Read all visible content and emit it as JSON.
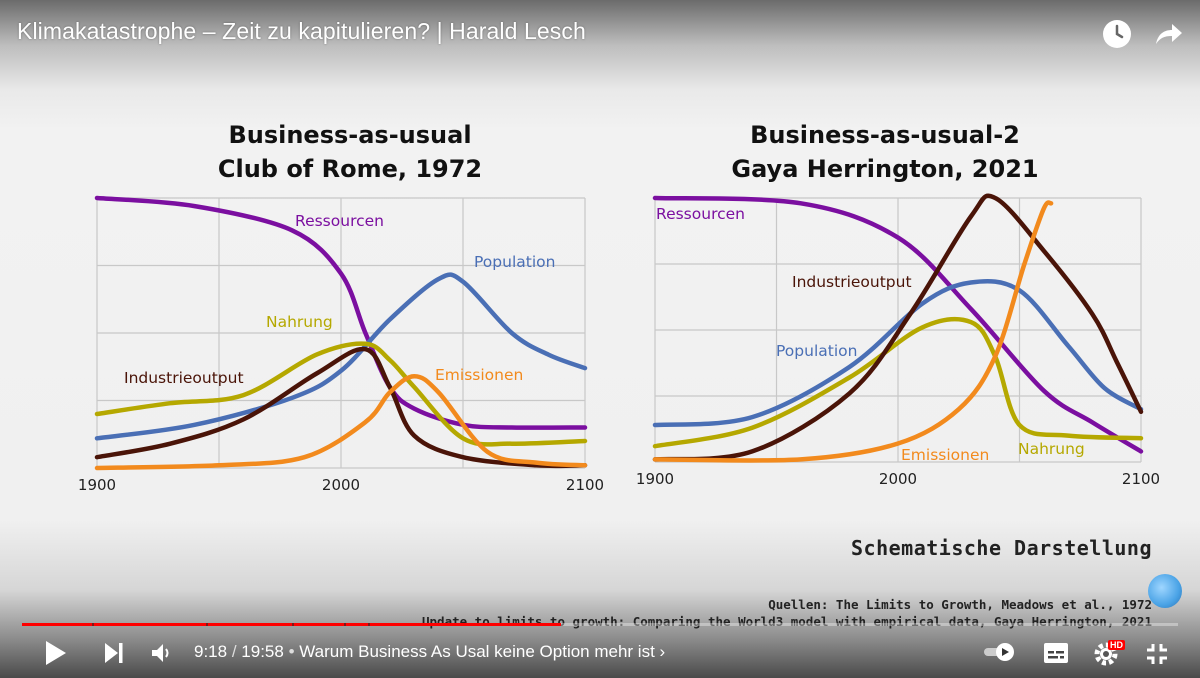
{
  "video": {
    "title": "Klimakatastrophe – Zeit zu kapitulieren? | Harald Lesch"
  },
  "slide": {
    "left_title_line1": "Business-as-usual",
    "left_title_line2": "Club of Rome, 1972",
    "right_title_line1": "Business-as-usual-2",
    "right_title_line2": "Gaya Herrington, 2021",
    "caption": "Schematische Darstellung",
    "source_line1": "Quellen: The Limits to Growth, Meadows et al., 1972",
    "source_line2": "Update to limits to growth: Comparing the World3 model with empirical data, Gaya Herrington, 2021"
  },
  "colors": {
    "ressourcen": "#7b0fa0",
    "population": "#4a6fb5",
    "nahrung": "#b5a800",
    "industrieoutput": "#4a1408",
    "emissionen": "#f28a1d"
  },
  "chart_data": [
    {
      "type": "line",
      "title": "Business-as-usual Club of Rome, 1972",
      "x_ticks": [
        "1900",
        "2000",
        "2100"
      ],
      "xlim": [
        1900,
        2100
      ],
      "ylim": [
        0,
        100
      ],
      "grid": true,
      "series": [
        {
          "name": "Ressourcen",
          "color_key": "ressourcen",
          "points": [
            [
              1900,
              100
            ],
            [
              1940,
              97
            ],
            [
              1980,
              88
            ],
            [
              2000,
              72
            ],
            [
              2010,
              50
            ],
            [
              2020,
              30
            ],
            [
              2030,
              22
            ],
            [
              2050,
              16
            ],
            [
              2070,
              15
            ],
            [
              2100,
              15
            ]
          ]
        },
        {
          "name": "Population",
          "color_key": "population",
          "points": [
            [
              1900,
              11
            ],
            [
              1940,
              16
            ],
            [
              1980,
              26
            ],
            [
              2000,
              36
            ],
            [
              2020,
              55
            ],
            [
              2040,
              70
            ],
            [
              2050,
              69
            ],
            [
              2070,
              50
            ],
            [
              2085,
              42
            ],
            [
              2100,
              37
            ]
          ]
        },
        {
          "name": "Nahrung",
          "color_key": "nahrung",
          "points": [
            [
              1900,
              20
            ],
            [
              1930,
              24
            ],
            [
              1960,
              27
            ],
            [
              1990,
              42
            ],
            [
              2010,
              46
            ],
            [
              2020,
              40
            ],
            [
              2030,
              30
            ],
            [
              2050,
              11
            ],
            [
              2070,
              9
            ],
            [
              2100,
              10
            ]
          ]
        },
        {
          "name": "Industrieoutput",
          "color_key": "industrieoutput",
          "points": [
            [
              1900,
              4
            ],
            [
              1930,
              9
            ],
            [
              1960,
              18
            ],
            [
              1990,
              35
            ],
            [
              2010,
              44
            ],
            [
              2020,
              30
            ],
            [
              2030,
              12
            ],
            [
              2050,
              4
            ],
            [
              2080,
              1
            ],
            [
              2100,
              1
            ]
          ]
        },
        {
          "name": "Emissionen",
          "color_key": "emissionen",
          "points": [
            [
              1900,
              0
            ],
            [
              1950,
              1
            ],
            [
              1985,
              4
            ],
            [
              2010,
              17
            ],
            [
              2020,
              28
            ],
            [
              2030,
              34
            ],
            [
              2040,
              28
            ],
            [
              2060,
              6
            ],
            [
              2080,
              2
            ],
            [
              2100,
              1
            ]
          ]
        }
      ],
      "labels": [
        "Ressourcen",
        "Population",
        "Nahrung",
        "Industrieoutput",
        "Emissionen"
      ]
    },
    {
      "type": "line",
      "title": "Business-as-usual-2 Gaya Herrington, 2021",
      "x_ticks": [
        "1900",
        "2000",
        "2100"
      ],
      "xlim": [
        1900,
        2100
      ],
      "ylim": [
        0,
        100
      ],
      "grid": true,
      "series": [
        {
          "name": "Ressourcen",
          "color_key": "ressourcen",
          "points": [
            [
              1900,
              100
            ],
            [
              1960,
              98
            ],
            [
              2000,
              85
            ],
            [
              2030,
              58
            ],
            [
              2060,
              27
            ],
            [
              2080,
              15
            ],
            [
              2100,
              4
            ]
          ]
        },
        {
          "name": "Population",
          "color_key": "population",
          "points": [
            [
              1900,
              14
            ],
            [
              1940,
              17
            ],
            [
              1980,
              36
            ],
            [
              2010,
              60
            ],
            [
              2030,
              68
            ],
            [
              2050,
              65
            ],
            [
              2070,
              44
            ],
            [
              2085,
              28
            ],
            [
              2100,
              20
            ]
          ]
        },
        {
          "name": "Nahrung",
          "color_key": "nahrung",
          "points": [
            [
              1900,
              6
            ],
            [
              1940,
              13
            ],
            [
              1980,
              32
            ],
            [
              2010,
              51
            ],
            [
              2030,
              53
            ],
            [
              2040,
              40
            ],
            [
              2050,
              14
            ],
            [
              2070,
              10
            ],
            [
              2100,
              9
            ]
          ]
        },
        {
          "name": "Industrieoutput",
          "color_key": "industrieoutput",
          "points": [
            [
              1900,
              1
            ],
            [
              1940,
              4
            ],
            [
              1980,
              26
            ],
            [
              2005,
              56
            ],
            [
              2030,
              93
            ],
            [
              2040,
              100
            ],
            [
              2060,
              80
            ],
            [
              2080,
              56
            ],
            [
              2090,
              38
            ],
            [
              2100,
              19
            ]
          ]
        },
        {
          "name": "Emissionen",
          "color_key": "emissionen",
          "points": [
            [
              1900,
              1
            ],
            [
              1960,
              1
            ],
            [
              2000,
              7
            ],
            [
              2025,
              20
            ],
            [
              2040,
              40
            ],
            [
              2052,
              75
            ],
            [
              2060,
              96
            ],
            [
              2063,
              98
            ]
          ]
        }
      ],
      "labels": [
        "Ressourcen",
        "Population",
        "Nahrung",
        "Industrieoutput",
        "Emissionen"
      ]
    }
  ],
  "player": {
    "current_time": "9:18",
    "duration": "19:58",
    "chapter": "Warum Business As Usal keine Option mehr ist",
    "progress": 0.466,
    "hd_badge": "HD",
    "icons": [
      "watch-later-icon",
      "share-icon",
      "play-icon",
      "next-icon",
      "volume-icon",
      "autoplay-toggle-icon",
      "subtitles-icon",
      "settings-icon",
      "exit-fullscreen-icon"
    ]
  }
}
